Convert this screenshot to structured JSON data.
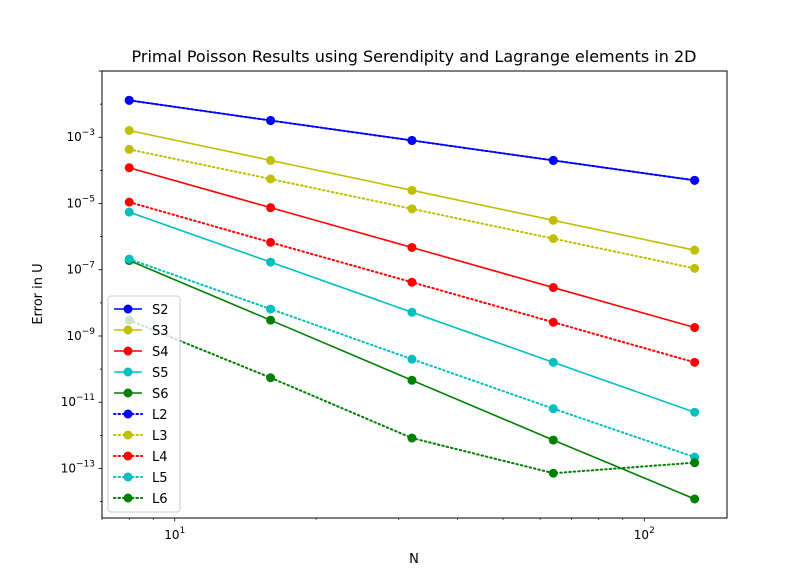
{
  "chart_data": {
    "type": "line",
    "title": "Primal Poisson Results using Serendipity and Lagrange elements in 2D",
    "xlabel": "N",
    "ylabel": "Error in U",
    "xscale": "log",
    "yscale": "log",
    "xlim": [
      7.0,
      150
    ],
    "ylim": [
      3.2e-15,
      0.1
    ],
    "grid": false,
    "legend_position": "lower-left",
    "x": [
      8,
      16,
      32,
      64,
      128
    ],
    "x_ticks": [
      {
        "value": 10,
        "base": "10",
        "exp": "1"
      },
      {
        "value": 100,
        "base": "10",
        "exp": "2"
      }
    ],
    "y_ticks": [
      {
        "value": 1e-13,
        "base": "10",
        "exp": "−13"
      },
      {
        "value": 1e-11,
        "base": "10",
        "exp": "−11"
      },
      {
        "value": 1e-09,
        "base": "10",
        "exp": "−9"
      },
      {
        "value": 1e-07,
        "base": "10",
        "exp": "−7"
      },
      {
        "value": 1e-05,
        "base": "10",
        "exp": "−5"
      },
      {
        "value": 0.001,
        "base": "10",
        "exp": "−3"
      }
    ],
    "series": [
      {
        "name": "S2",
        "color": "#0000ff",
        "style": "solid",
        "values": [
          0.013,
          0.0032,
          0.0008,
          0.0002,
          5e-05
        ]
      },
      {
        "name": "S3",
        "color": "#bfbf00",
        "style": "solid",
        "values": [
          0.0016,
          0.0002,
          2.5e-05,
          3.1e-06,
          3.9e-07
        ]
      },
      {
        "name": "S4",
        "color": "#ff0000",
        "style": "solid",
        "values": [
          0.00012,
          7.5e-06,
          4.7e-07,
          2.9e-08,
          1.8e-09
        ]
      },
      {
        "name": "S5",
        "color": "#00bfbf",
        "style": "solid",
        "values": [
          5.5e-06,
          1.7e-07,
          5.2e-09,
          1.6e-10,
          5e-12
        ]
      },
      {
        "name": "S6",
        "color": "#008000",
        "style": "solid",
        "values": [
          1.9e-07,
          3e-09,
          4.6e-11,
          7.2e-13,
          1.2e-14
        ]
      },
      {
        "name": "L2",
        "color": "#0000ff",
        "style": "dotted",
        "values": [
          0.013,
          0.0032,
          0.0008,
          0.0002,
          5e-05
        ]
      },
      {
        "name": "L3",
        "color": "#bfbf00",
        "style": "dotted",
        "values": [
          0.00043,
          5.5e-05,
          6.9e-06,
          8.7e-07,
          1.1e-07
        ]
      },
      {
        "name": "L4",
        "color": "#ff0000",
        "style": "dotted",
        "values": [
          1.1e-05,
          6.7e-07,
          4.2e-08,
          2.6e-09,
          1.6e-10
        ]
      },
      {
        "name": "L5",
        "color": "#00bfbf",
        "style": "dotted",
        "values": [
          2.1e-07,
          6.5e-09,
          2e-10,
          6.4e-12,
          2.2e-13
        ]
      },
      {
        "name": "L6",
        "color": "#008000",
        "style": "dotted",
        "values": [
          3e-09,
          5.5e-11,
          8.3e-13,
          7.2e-14,
          1.5e-13
        ]
      }
    ]
  }
}
